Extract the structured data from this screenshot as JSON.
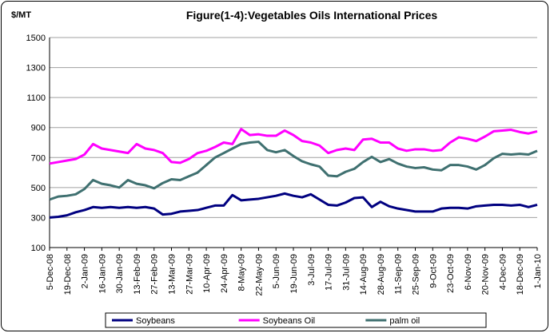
{
  "chart_data": {
    "type": "line",
    "title": "Figure(1-4):Vegetables Oils International Prices",
    "y_label": "$/MT",
    "categories": [
      "5-Dec-08",
      null,
      "19-Dec-08",
      null,
      "2-Jan-09",
      null,
      "16-Jan-09",
      null,
      "30-Jan-09",
      null,
      "13-Feb-09",
      null,
      "27-Feb-09",
      null,
      "13-Mar-09",
      null,
      "27-Mar-09",
      null,
      "10-Apr-09",
      null,
      "24-Apr-09",
      null,
      "8-May-09",
      null,
      "22-May-09",
      null,
      "5-Jun-09",
      null,
      "19-Jun-09",
      null,
      "3-Jul-09",
      null,
      "17-Jul-09",
      null,
      "31-Jul-09",
      null,
      "14-Aug-09",
      null,
      "28-Aug-09",
      null,
      "11-Sep-09",
      null,
      "25-Sep-09",
      null,
      "9-Oct-09",
      null,
      "23-Oct-09",
      null,
      "6-Nov-09",
      null,
      "20-Nov-09",
      null,
      "4-Dec-09",
      null,
      "18-Dec-09",
      null,
      "1-Jan-10"
    ],
    "series": [
      {
        "name": "Soybeans",
        "color": "#000080",
        "values": [
          300,
          305,
          315,
          335,
          350,
          370,
          365,
          370,
          365,
          370,
          365,
          370,
          360,
          320,
          325,
          340,
          345,
          350,
          365,
          380,
          380,
          450,
          415,
          420,
          425,
          435,
          445,
          460,
          445,
          435,
          455,
          420,
          385,
          380,
          400,
          430,
          435,
          370,
          405,
          375,
          360,
          350,
          340,
          340,
          340,
          360,
          365,
          365,
          360,
          375,
          380,
          385,
          385,
          380,
          385,
          370,
          385
        ]
      },
      {
        "name": "Soybeans Oil",
        "color": "#ff00ff",
        "values": [
          660,
          670,
          680,
          690,
          720,
          790,
          760,
          750,
          740,
          730,
          790,
          760,
          750,
          730,
          670,
          665,
          690,
          730,
          745,
          770,
          800,
          790,
          890,
          850,
          855,
          845,
          845,
          880,
          850,
          810,
          800,
          780,
          730,
          750,
          760,
          750,
          820,
          825,
          800,
          800,
          760,
          745,
          755,
          755,
          745,
          750,
          800,
          835,
          825,
          810,
          840,
          875,
          880,
          885,
          870,
          860,
          875
        ]
      },
      {
        "name": "palm oil",
        "color": "#3f7070",
        "values": [
          420,
          440,
          445,
          455,
          490,
          550,
          525,
          515,
          500,
          550,
          525,
          515,
          495,
          530,
          555,
          550,
          575,
          600,
          650,
          700,
          730,
          760,
          790,
          800,
          805,
          750,
          735,
          750,
          710,
          675,
          655,
          640,
          580,
          575,
          605,
          625,
          670,
          705,
          670,
          690,
          660,
          640,
          630,
          635,
          620,
          615,
          650,
          650,
          640,
          620,
          650,
          695,
          725,
          720,
          725,
          720,
          745
        ]
      }
    ],
    "ylim": [
      100,
      1500
    ],
    "yticks": [
      100,
      300,
      500,
      700,
      900,
      1100,
      1300,
      1500
    ],
    "grid": true,
    "legend": "bottom"
  }
}
